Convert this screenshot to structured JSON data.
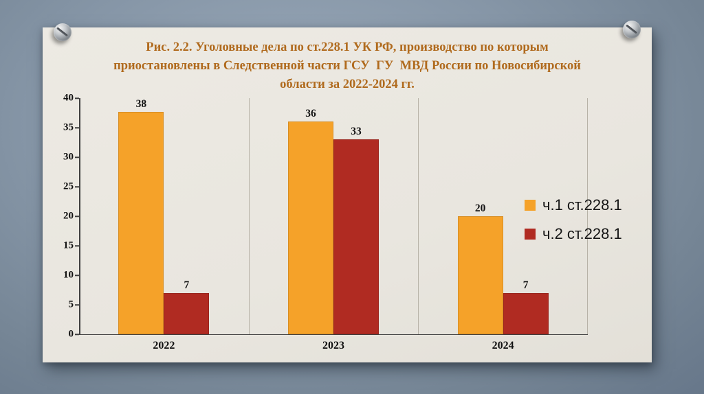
{
  "slide": {
    "title_lines": [
      "Рис. 2.2. Уголовные дела по ст.228.1 УК РФ, производство по которым",
      "приостановлены в Следственной части ГСУ  ГУ  МВД России по Новосибирской",
      "области за 2022-2024 гг."
    ],
    "colors": {
      "background": "#8696a7",
      "card": "#e9e6df",
      "title_text": "#b06a1d"
    }
  },
  "chart_data": {
    "type": "bar",
    "title": "Рис. 2.2. Уголовные дела по ст.228.1 УК РФ, производство по которым приостановлены в Следственной части ГСУ ГУ МВД России по Новосибирской области за 2022-2024 гг.",
    "categories": [
      "2022",
      "2023",
      "2024"
    ],
    "series": [
      {
        "name": "ч.1 ст.228.1",
        "color": "#f5a229",
        "values": [
          38,
          36,
          20
        ]
      },
      {
        "name": "ч.2 ст.228.1",
        "color": "#b02b22",
        "values": [
          7,
          33,
          7
        ]
      }
    ],
    "xlabel": "",
    "ylabel": "",
    "ylim": [
      0,
      40
    ],
    "yticks": [
      0,
      5,
      10,
      15,
      20,
      25,
      30,
      35,
      40
    ],
    "grid": "vertical-category-separators",
    "legend_position": "right",
    "bar_value_labels": true
  }
}
